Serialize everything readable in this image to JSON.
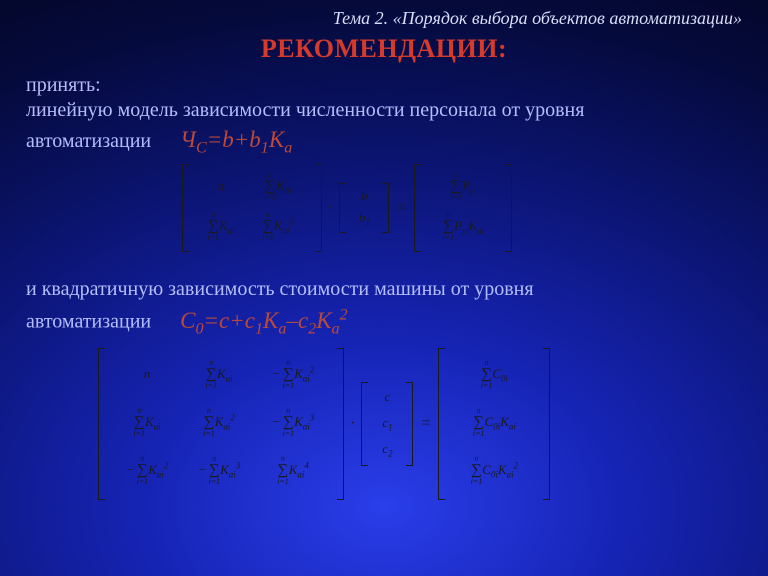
{
  "background_gradient": {
    "inner": "#2a3eea",
    "mid": "#0b1470",
    "outer": "#02051e"
  },
  "text_color_body": "#b5befc",
  "text_color_title": "#d63a2a",
  "text_color_formula": "#b94a3a",
  "font_family": "Times New Roman",
  "topic": "Тема 2. «Порядок выбора объектов автоматизации»",
  "title": "РЕКОМЕНДАЦИИ:",
  "p1_line1": "принять:",
  "p1_line2": "линейную модель зависимости численности персонала от уровня",
  "p1_line3_lead": "автоматизации",
  "formula1": {
    "lhs": "Ч",
    "lhs_sub": "С",
    "rhs": "=b+b",
    "b1_sub": "1",
    "K": "K",
    "K_sub": "a"
  },
  "p2_line1": "и квадратичную зависимость стоимости машины от  уровня",
  "p2_line2_lead": "автоматизации",
  "formula2": {
    "lhs": "С",
    "lhs_sub": "0",
    "eq": "=c+c",
    "c1_sub": "1",
    "K1": "K",
    "K1_sub": "a",
    "minus": "–c",
    "c2_sub": "2",
    "K2": "К",
    "K2_sub": "a",
    "K2_sup": "2"
  },
  "matrix1": {
    "type": "matrix-equation",
    "colors": {
      "ink": "#1a1a1a"
    },
    "font_sizes": {
      "term": 13,
      "sigma": 15,
      "limits": 8
    },
    "A": [
      [
        "n",
        {
          "sum": true,
          "lower": "i=1",
          "upper": "n",
          "body": "K",
          "sub": "ai"
        }
      ],
      [
        {
          "sum": true,
          "lower": "i=1",
          "upper": "n",
          "body": "K",
          "sub": "ai"
        },
        {
          "sum": true,
          "lower": "i=1",
          "upper": "n",
          "body": "K",
          "sub": "ai",
          "sup": "2"
        }
      ]
    ],
    "B": [
      [
        "b"
      ],
      [
        "b",
        "1"
      ]
    ],
    "C": [
      [
        {
          "sum": true,
          "lower": "i=1",
          "upper": "n",
          "body": "P",
          "sub": "yi"
        }
      ],
      [
        {
          "sum": true,
          "lower": "i=1",
          "upper": "n",
          "body": "P",
          "sub": "yi",
          "tail": "K",
          "tail_sub": "ai"
        }
      ]
    ]
  },
  "matrix2": {
    "type": "matrix-equation",
    "colors": {
      "ink": "#1a1a1a"
    },
    "font_sizes": {
      "term": 13,
      "sigma": 15,
      "limits": 8
    },
    "A": [
      [
        "n",
        {
          "sum": true,
          "lower": "i=1",
          "upper": "n",
          "body": "K",
          "sub": "ai"
        },
        {
          "neg": true,
          "sum": true,
          "lower": "i=1",
          "upper": "n",
          "body": "K",
          "sub": "ai",
          "sup": "2"
        }
      ],
      [
        {
          "sum": true,
          "lower": "i=1",
          "upper": "n",
          "body": "K",
          "sub": "ai"
        },
        {
          "sum": true,
          "lower": "i=1",
          "upper": "n",
          "body": "K",
          "sub": "ai",
          "sup": "2"
        },
        {
          "neg": true,
          "sum": true,
          "lower": "i=1",
          "upper": "n",
          "body": "K",
          "sub": "ai",
          "sup": "3"
        }
      ],
      [
        {
          "neg": true,
          "sum": true,
          "lower": "i=1",
          "upper": "n",
          "body": "K",
          "sub": "ai",
          "sup": "2"
        },
        {
          "neg": true,
          "sum": true,
          "lower": "i=1",
          "upper": "n",
          "body": "K",
          "sub": "ai",
          "sup": "3"
        },
        {
          "sum": true,
          "lower": "i=1",
          "upper": "n",
          "body": "K",
          "sub": "ai",
          "sup": "4"
        }
      ]
    ],
    "B": [
      [
        "c"
      ],
      [
        "c",
        "1"
      ],
      [
        "c",
        "2"
      ]
    ],
    "C": [
      [
        {
          "sum": true,
          "lower": "i=1",
          "upper": "n",
          "body": "C",
          "sub": "0i"
        }
      ],
      [
        {
          "sum": true,
          "lower": "i=1",
          "upper": "n",
          "body": "C",
          "sub": "0i",
          "tail": "K",
          "tail_sub": "ai"
        }
      ],
      [
        {
          "sum": true,
          "lower": "i=1",
          "upper": "n",
          "body": "C",
          "sub": "0i",
          "tail": "K",
          "tail_sub": "ai",
          "tail_sup": "2"
        }
      ]
    ]
  }
}
